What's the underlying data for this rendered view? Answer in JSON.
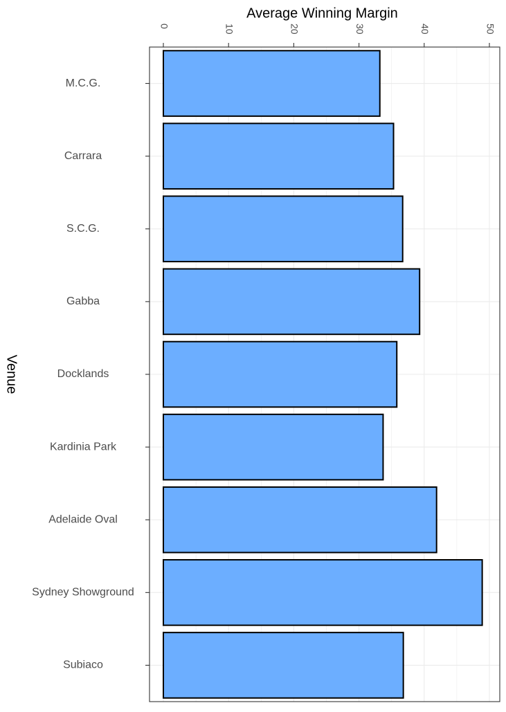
{
  "chart_data": {
    "type": "bar",
    "orientation": "horizontal",
    "xlabel": "Average Winning Margin",
    "ylabel": "Venue",
    "categories": [
      "M.C.G.",
      "Carrara",
      "S.C.G.",
      "Gabba",
      "Docklands",
      "Kardinia Park",
      "Adelaide Oval",
      "Sydney Showground",
      "Subiaco"
    ],
    "values": [
      33.2,
      35.3,
      36.7,
      39.3,
      35.8,
      33.7,
      41.9,
      48.9,
      36.8
    ],
    "xlim": [
      0,
      50
    ],
    "xticks": [
      0,
      10,
      20,
      30,
      40,
      50
    ],
    "xtick_labels": [
      "0",
      "10",
      "20",
      "30",
      "40",
      "50"
    ],
    "x_axis_position": "top",
    "tick_label_rotation": "vertical",
    "grid": true,
    "legend": "none",
    "colors": {
      "bar_fill": "#6CAEFF",
      "bar_stroke": "#000000",
      "grid": "#EBEBEB",
      "panel_border": "#333333",
      "tick_text": "#4D4D4D",
      "title_text": "#000000"
    }
  }
}
